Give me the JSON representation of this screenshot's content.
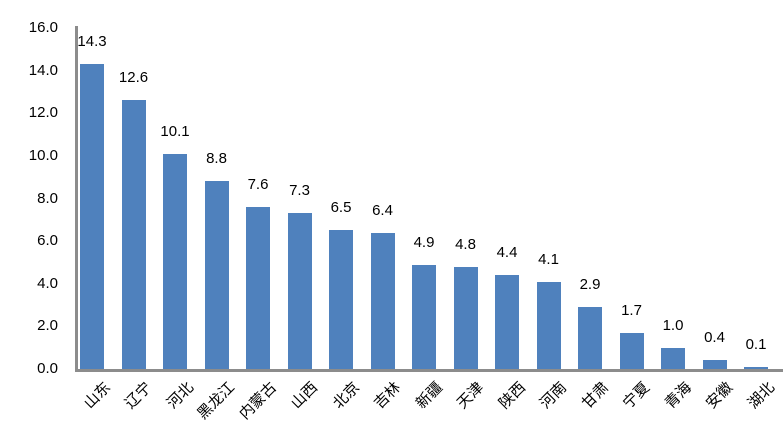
{
  "chart_data": {
    "type": "bar",
    "title": "",
    "xlabel": "",
    "ylabel": "",
    "categories": [
      "山东",
      "辽宁",
      "河北",
      "黑龙江",
      "内蒙古",
      "山西",
      "北京",
      "吉林",
      "新疆",
      "天津",
      "陕西",
      "河南",
      "甘肃",
      "宁夏",
      "青海",
      "安徽",
      "湖北"
    ],
    "values": [
      14.3,
      12.6,
      10.1,
      8.8,
      7.6,
      7.3,
      6.5,
      6.4,
      4.9,
      4.8,
      4.4,
      4.1,
      2.9,
      1.7,
      1.0,
      0.4,
      0.1
    ],
    "data_labels": [
      "14.3",
      "12.6",
      "10.1",
      "8.8",
      "7.6",
      "7.3",
      "6.5",
      "6.4",
      "4.9",
      "4.8",
      "4.4",
      "4.1",
      "2.9",
      "1.7",
      "1.0",
      "0.4",
      "0.1"
    ],
    "ylim": [
      0,
      16
    ],
    "ytick_step": 2,
    "ytick_labels": [
      "0.0",
      "2.0",
      "4.0",
      "6.0",
      "8.0",
      "10.0",
      "12.0",
      "14.0",
      "16.0"
    ],
    "grid": false,
    "legend": "none",
    "x_label_rotation_deg": 45,
    "bar_color": "#4F81BD",
    "axis_color": "#8C8C8C",
    "text_color": "#000000",
    "background_color": "#FFFFFF"
  }
}
